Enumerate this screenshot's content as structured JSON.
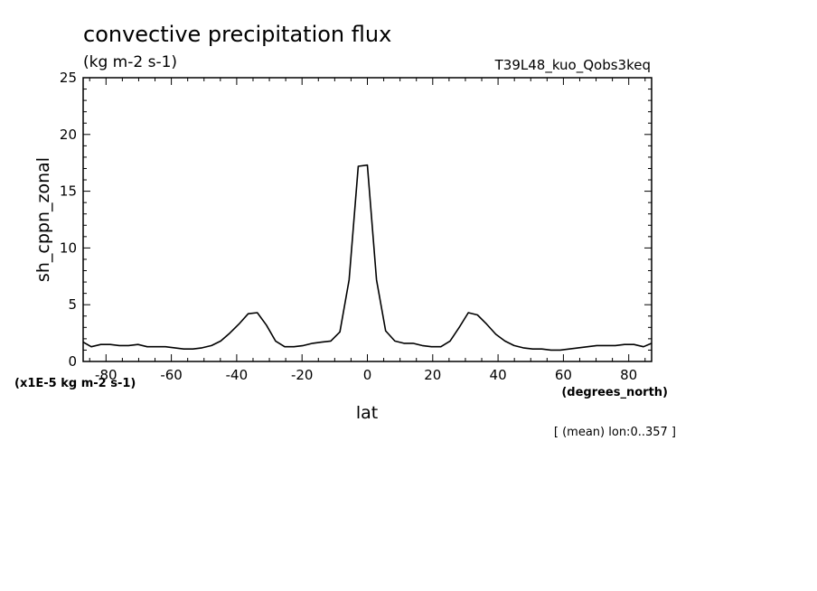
{
  "chart_data": {
    "type": "line",
    "title": "convective precipitation flux",
    "subtitle": "(kg m-2 s-1)",
    "run_label": "T39L48_kuo_Qobs3keq",
    "ylabel": "sh_cppn_zonal",
    "xlabel": "lat",
    "x_units": "(degrees_north)",
    "y_scale_note": "(x1E-5 kg m-2 s-1)",
    "footnote": "[ (mean) lon:0..357 ]",
    "xlim": [
      -87,
      87
    ],
    "ylim": [
      0,
      25
    ],
    "x_ticks": [
      -80,
      -60,
      -40,
      -20,
      0,
      20,
      40,
      60,
      80
    ],
    "x_tick_labels": [
      "-80",
      "-60",
      "-40",
      "-20",
      "0",
      "20",
      "40",
      "60",
      "80"
    ],
    "y_ticks": [
      0,
      5,
      10,
      15,
      20,
      25
    ],
    "y_tick_labels": [
      "0",
      "5",
      "10",
      "15",
      "20",
      "25"
    ],
    "grid": false,
    "line_color": "#000000",
    "series": [
      {
        "x": [
          -87.9,
          -84.5,
          -81.6,
          -78.7,
          -75.9,
          -73.1,
          -70.2,
          -67.4,
          -64.6,
          -61.8,
          -59.0,
          -56.2,
          -53.4,
          -50.6,
          -47.7,
          -44.9,
          -42.1,
          -39.3,
          -36.5,
          -33.7,
          -30.9,
          -28.1,
          -25.3,
          -22.5,
          -19.6,
          -16.8,
          -14.0,
          -11.2,
          -8.4,
          -5.6,
          -2.8,
          0.0,
          2.8,
          5.6,
          8.4,
          11.2,
          14.0,
          16.8,
          19.6,
          22.5,
          25.3,
          28.1,
          30.9,
          33.7,
          36.5,
          39.3,
          42.1,
          44.9,
          47.7,
          50.6,
          53.4,
          56.2,
          59.0,
          61.8,
          64.6,
          67.4,
          70.2,
          73.1,
          75.9,
          78.7,
          81.6,
          84.5,
          87.9
        ],
        "values": [
          1.7,
          1.3,
          1.5,
          1.5,
          1.4,
          1.4,
          1.5,
          1.3,
          1.3,
          1.3,
          1.2,
          1.1,
          1.1,
          1.2,
          1.4,
          1.8,
          2.5,
          3.3,
          4.2,
          4.3,
          3.2,
          1.8,
          1.3,
          1.3,
          1.4,
          1.6,
          1.7,
          1.8,
          2.6,
          7.2,
          17.2,
          17.3,
          7.2,
          2.7,
          1.8,
          1.6,
          1.6,
          1.4,
          1.3,
          1.3,
          1.8,
          3.0,
          4.3,
          4.1,
          3.3,
          2.4,
          1.8,
          1.4,
          1.2,
          1.1,
          1.1,
          1.0,
          1.0,
          1.1,
          1.2,
          1.3,
          1.4,
          1.4,
          1.4,
          1.5,
          1.5,
          1.3,
          1.6
        ]
      }
    ]
  }
}
